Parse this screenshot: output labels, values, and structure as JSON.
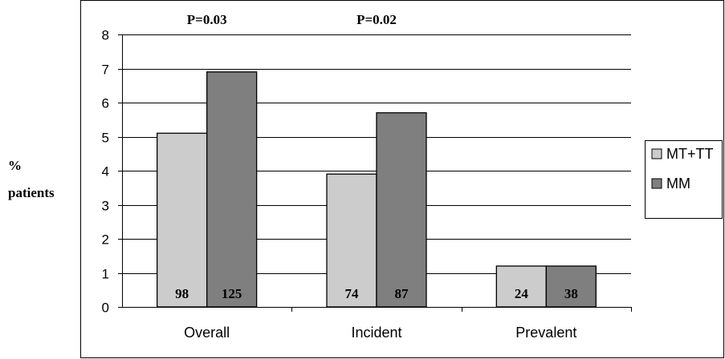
{
  "chart_data": {
    "type": "bar",
    "categories": [
      "Overall",
      "Incident",
      "Prevalent"
    ],
    "series": [
      {
        "name": "MT+TT",
        "values": [
          5.1,
          3.9,
          1.2
        ],
        "counts": [
          "98",
          "74",
          "24"
        ],
        "color": "#cccccc"
      },
      {
        "name": "MM",
        "values": [
          6.9,
          5.7,
          1.2
        ],
        "counts": [
          "125",
          "87",
          "38"
        ],
        "color": "#7f7f7f"
      }
    ],
    "ylabel": [
      "%",
      "patients"
    ],
    "xlabel": "",
    "ylim": [
      0,
      8
    ],
    "yticks": [
      "0",
      "1",
      "2",
      "3",
      "4",
      "5",
      "6",
      "7",
      "8"
    ],
    "grid": true,
    "legend_position": "right",
    "annotations": [
      {
        "category": "Overall",
        "text": "P=0.03"
      },
      {
        "category": "Incident",
        "text": "P=0.02"
      }
    ]
  }
}
